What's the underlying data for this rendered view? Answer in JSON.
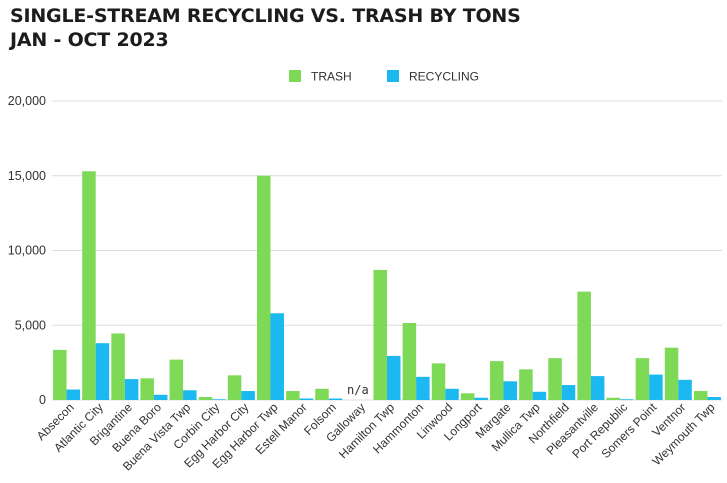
{
  "chart_data": {
    "type": "bar",
    "title": "SINGLE-STREAM RECYCLING VS. TRASH BY TONS",
    "subtitle": "JAN - OCT 2023",
    "xlabel": "",
    "ylabel": "",
    "ylim": [
      0,
      20000
    ],
    "yticks": [
      0,
      5000,
      10000,
      15000,
      20000
    ],
    "ytick_labels": [
      "0",
      "5,000",
      "10,000",
      "15,000",
      "20,000"
    ],
    "grid": true,
    "legend_position": "top-center",
    "categories": [
      "Absecon",
      "Atlantic City",
      "Brigantine",
      "Buena Boro",
      "Buena Vista Twp",
      "Corbin City",
      "Egg Harbor City",
      "Egg Harbor Twp",
      "Estell Manor",
      "Folsom",
      "Galloway",
      "Hamilton Twp",
      "Hammonton",
      "Linwood",
      "Longport",
      "Margate",
      "Mullica Twp",
      "Northfield",
      "Pleasantville",
      "Port Republic",
      "Somers Point",
      "Ventnor",
      "Weymouth Twp"
    ],
    "series": [
      {
        "name": "TRASH",
        "color": "#7ed957",
        "values": [
          3350,
          15300,
          4450,
          1450,
          2700,
          200,
          1650,
          15000,
          600,
          750,
          null,
          8700,
          5150,
          2450,
          450,
          2600,
          2050,
          2800,
          7250,
          150,
          2800,
          3500,
          600
        ]
      },
      {
        "name": "RECYCLING",
        "color": "#1cb8f0",
        "values": [
          700,
          3800,
          1400,
          350,
          650,
          50,
          600,
          5800,
          100,
          100,
          null,
          2950,
          1550,
          750,
          150,
          1250,
          550,
          1000,
          1600,
          50,
          1700,
          1350,
          200
        ]
      }
    ],
    "annotations": [
      {
        "category": "Galloway",
        "text": "n/a"
      }
    ]
  }
}
